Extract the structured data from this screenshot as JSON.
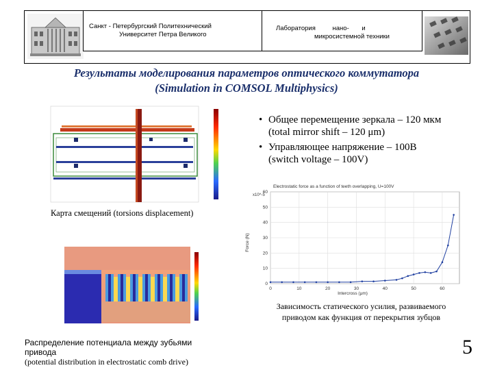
{
  "header": {
    "uni_prefix": "Санкт -",
    "uni_line1": "Петербургский Политехнический",
    "uni_line2": "Университет Петра Великого",
    "lab_line1_a": "Лаборатория",
    "lab_line1_b": "нано-",
    "lab_line1_c": "и",
    "lab_line2": "микросистемной техники"
  },
  "title": {
    "line1": "Результаты моделирования параметров оптического коммутатора",
    "line2": "(Simulation in COMSOL Multiphysics)"
  },
  "bullets": [
    {
      "ru": "Общее перемещение зеркала – 120 мкм",
      "en": "(total mirror shift – 120 μm)"
    },
    {
      "ru": "Управляющее напряжение – 100В",
      "en": "(switch voltage – 100V)"
    }
  ],
  "captions": {
    "displacement": "Карта смещений (torsions displacement)",
    "potential_line1": "Распределение потенциала между зубьями",
    "potential_line2": "привода",
    "potential_line3": "(potential distribution in electrostatic comb drive)",
    "force_line1": "Зависимость статического усилия, развиваемого",
    "force_line2": "приводом как функция от перекрытия зубцов"
  },
  "page_number": "5",
  "colors": {
    "title": "#1a2f6b",
    "plot_line": "#1f3fa0"
  },
  "chart_data": {
    "type": "line",
    "title": "Electrostatic force as a function of teeth overlapping, U=100V",
    "xlabel": "Intercross (μm)",
    "ylabel": "Force (N)",
    "y_multiplier": "x10^-5",
    "xlim": [
      0,
      66
    ],
    "ylim": [
      0,
      60
    ],
    "x_ticks": [
      0,
      10,
      20,
      30,
      40,
      50,
      60
    ],
    "y_ticks": [
      0,
      10,
      20,
      30,
      40,
      50,
      60
    ],
    "grid": true,
    "series": [
      {
        "x": [
          0,
          4,
          8,
          12,
          16,
          20,
          24,
          28,
          32,
          36,
          40,
          44,
          46,
          48,
          50,
          52,
          54,
          56,
          58,
          60,
          62,
          64
        ],
        "y": [
          1,
          1,
          1,
          1,
          1,
          1,
          1,
          1,
          1.5,
          1.5,
          2,
          2.5,
          3.5,
          5,
          6,
          7,
          7.5,
          7,
          8,
          14,
          25,
          45
        ]
      }
    ]
  }
}
